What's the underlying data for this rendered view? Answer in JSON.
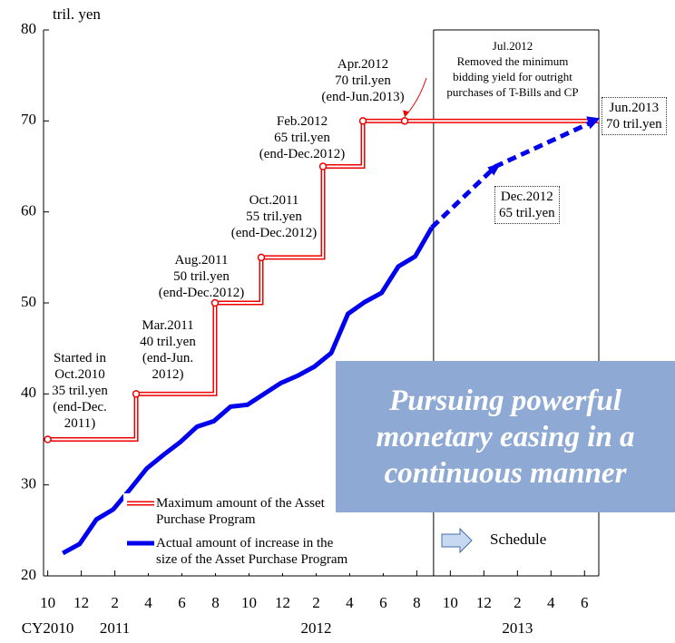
{
  "chart_data": {
    "type": "line",
    "y_unit_label": "tril. yen",
    "xlim": [
      -0.25,
      32.85
    ],
    "xticks": [
      {
        "value": 0,
        "label": "10"
      },
      {
        "value": 2,
        "label": "12"
      },
      {
        "value": 4,
        "label": "2"
      },
      {
        "value": 6,
        "label": "4"
      },
      {
        "value": 8,
        "label": "6"
      },
      {
        "value": 10,
        "label": "8"
      },
      {
        "value": 12,
        "label": "10"
      },
      {
        "value": 14,
        "label": "12"
      },
      {
        "value": 16,
        "label": "2"
      },
      {
        "value": 18,
        "label": "4"
      },
      {
        "value": 20,
        "label": "6"
      },
      {
        "value": 22,
        "label": "8"
      },
      {
        "value": 24,
        "label": "10"
      },
      {
        "value": 26,
        "label": "12"
      },
      {
        "value": 28,
        "label": "2"
      },
      {
        "value": 30,
        "label": "4"
      },
      {
        "value": 32,
        "label": "6"
      }
    ],
    "year_labels": [
      {
        "value": 0,
        "label": "CY2010"
      },
      {
        "value": 4,
        "label": "2011"
      },
      {
        "value": 16,
        "label": "2012"
      },
      {
        "value": 28,
        "label": "2013"
      }
    ],
    "ylim": [
      20,
      80
    ],
    "yticks": [
      20,
      30,
      40,
      50,
      60,
      70,
      80
    ],
    "series": [
      {
        "name": "Maximum amount of the Asset\nPurchase Program",
        "color": "#ee0000",
        "step": true,
        "x": [
          0,
          5.27,
          5.27,
          9.97,
          9.97,
          12.73,
          12.73,
          16.41,
          16.41,
          18.79,
          18.79,
          32.85
        ],
        "values": [
          35,
          35,
          40,
          40,
          50,
          50,
          55,
          55,
          65,
          65,
          70,
          70
        ]
      },
      {
        "name": "Actual amount of increase in the\nsize of the Asset Purchase Program",
        "color": "#0000ee",
        "x": [
          0.9,
          1.9,
          2.9,
          3.9,
          4.9,
          5.9,
          6.9,
          7.9,
          8.9,
          9.9,
          10.9,
          11.9,
          12.9,
          13.9,
          14.9,
          15.9,
          16.9,
          17.9,
          18.9,
          19.9,
          20.9,
          21.9,
          22.9
        ],
        "values": [
          22.5,
          23.5,
          26.2,
          27.3,
          29.5,
          31.8,
          33.3,
          34.7,
          36.4,
          37,
          38.6,
          38.8,
          40,
          41.2,
          42,
          43,
          44.5,
          48.8,
          50.1,
          51.1,
          54,
          55.1,
          58.3
        ]
      },
      {
        "color": "#0000ee",
        "dashed": true,
        "x": [
          22.9,
          26.7,
          32.6
        ],
        "values": [
          58.3,
          65,
          70
        ]
      }
    ],
    "schedule_start": 23,
    "schedule_label": "Schedule",
    "announcements": [
      {
        "x": 0,
        "y": 35,
        "text": "Started in\nOct.2010\n35 tril.yen\n(end-Dec.\n2011)"
      },
      {
        "x": 5.27,
        "y": 40,
        "text": "Mar.2011\n40 tril.yen\n(end-Jun.\n2012)"
      },
      {
        "x": 9.97,
        "y": 50,
        "text": "Aug.2011\n50 tril.yen\n(end-Dec.2012)"
      },
      {
        "x": 12.73,
        "y": 55,
        "text": "Oct.2011\n55 tril.yen\n(end-Dec.2012)"
      },
      {
        "x": 16.41,
        "y": 65,
        "text": "Feb.2012\n65 tril.yen\n(end-Dec.2012)"
      },
      {
        "x": 18.79,
        "y": 70,
        "text": "Apr.2012\n70 tril.yen\n(end-Jun.2013)"
      },
      {
        "x": 21.28,
        "y": 70,
        "text": "Jul.2012\nRemoved the minimum\nbidding yield for outright\npurchases of T-Bills and CP"
      }
    ],
    "callouts": [
      "Dec.2012\n65 tril.yen",
      "Jun.2013\n70 tril.yen"
    ],
    "message": "Pursuing powerful\nmonetary easing in a\ncontinuous manner"
  }
}
